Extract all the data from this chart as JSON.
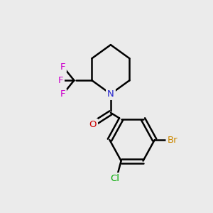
{
  "background_color": "#ebebeb",
  "bond_color": "#000000",
  "atom_colors": {
    "N": "#2222cc",
    "O": "#cc0000",
    "Br": "#cc8800",
    "Cl": "#00aa00",
    "F": "#cc00cc"
  },
  "bond_width": 1.8,
  "figsize": [
    3.0,
    3.0
  ],
  "dpi": 100
}
